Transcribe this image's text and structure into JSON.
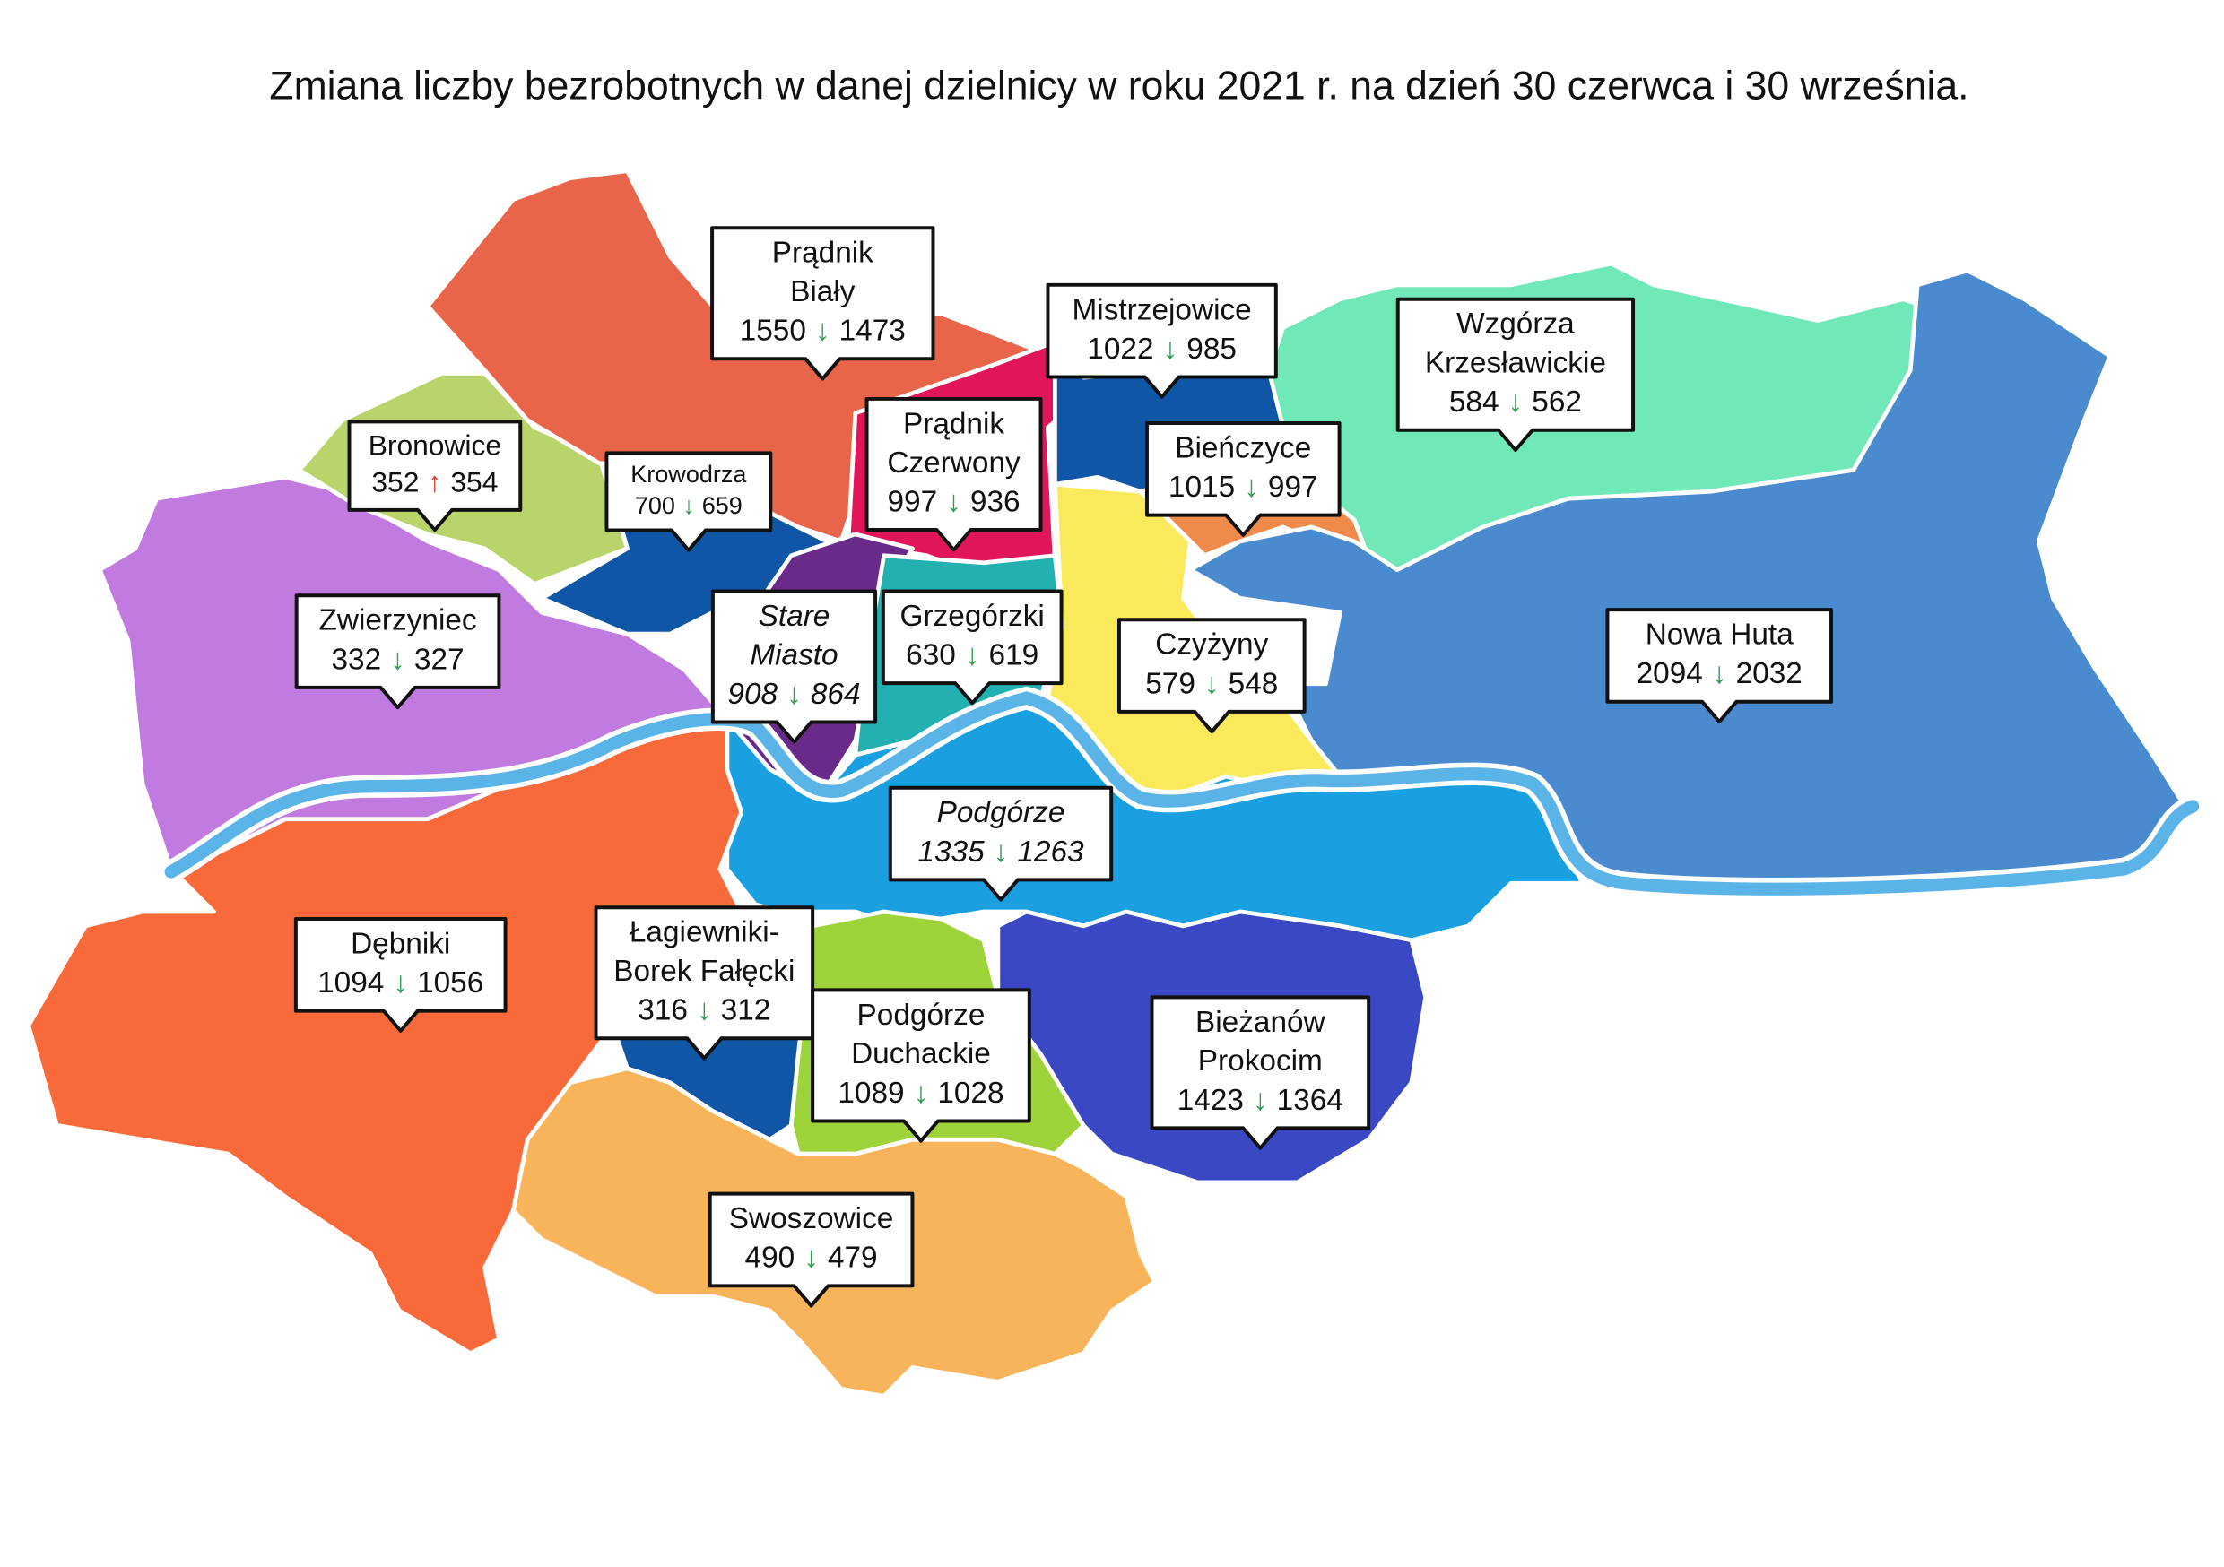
{
  "title": "Zmiana liczby bezrobotnych w danej dzielnicy w roku 2021 r. na dzień 30 czerwca i 30 września.",
  "districts": [
    {
      "name": [
        "Prądnik",
        "Biały"
      ],
      "june": 1550,
      "arrow": "↓",
      "september": 1473,
      "arrow_color": "#2e9e52"
    },
    {
      "name": [
        "Mistrzejowice"
      ],
      "june": 1022,
      "arrow": "↓",
      "september": 985,
      "arrow_color": "#2e9e52"
    },
    {
      "name": [
        "Wzgórza",
        "Krzesławickie"
      ],
      "june": 584,
      "arrow": "↓",
      "september": 562,
      "arrow_color": "#2e9e52"
    },
    {
      "name": [
        "Bronowice"
      ],
      "june": 352,
      "arrow": "↑",
      "september": 354,
      "arrow_color": "#e03a2a"
    },
    {
      "name": [
        "Krowodrza"
      ],
      "june": 700,
      "arrow": "↓",
      "september": 659,
      "arrow_color": "#2e9e52"
    },
    {
      "name": [
        "Prądnik",
        "Czerwony"
      ],
      "june": 997,
      "arrow": "↓",
      "september": 936,
      "arrow_color": "#2e9e52"
    },
    {
      "name": [
        "Bieńczyce"
      ],
      "june": 1015,
      "arrow": "↓",
      "september": 997,
      "arrow_color": "#2e9e52"
    },
    {
      "name": [
        "Zwierzyniec"
      ],
      "june": 332,
      "arrow": "↓",
      "september": 327,
      "arrow_color": "#2e9e52"
    },
    {
      "name": [
        "Stare",
        "Miasto"
      ],
      "june": 908,
      "arrow": "↓",
      "september": 864,
      "arrow_color": "#2e9e52"
    },
    {
      "name": [
        "Grzegórzki"
      ],
      "june": 630,
      "arrow": "↓",
      "september": 619,
      "arrow_color": "#2e9e52"
    },
    {
      "name": [
        "Czyżyny"
      ],
      "june": 579,
      "arrow": "↓",
      "september": 548,
      "arrow_color": "#2e9e52"
    },
    {
      "name": [
        "Nowa Huta"
      ],
      "june": 2094,
      "arrow": "↓",
      "september": 2032,
      "arrow_color": "#2e9e52"
    },
    {
      "name": [
        "Podgórze"
      ],
      "june": 1335,
      "arrow": "↓",
      "september": 1263,
      "arrow_color": "#2e9e52"
    },
    {
      "name": [
        "Dębniki"
      ],
      "june": 1094,
      "arrow": "↓",
      "september": 1056,
      "arrow_color": "#2e9e52"
    },
    {
      "name": [
        "Łagiewniki-",
        "Borek Fałęcki"
      ],
      "june": 316,
      "arrow": "↓",
      "september": 312,
      "arrow_color": "#2e9e52"
    },
    {
      "name": [
        "Podgórze",
        "Duchackie"
      ],
      "june": 1089,
      "arrow": "↓",
      "september": 1028,
      "arrow_color": "#2e9e52"
    },
    {
      "name": [
        "Bieżanów",
        "Prokocim"
      ],
      "june": 1423,
      "arrow": "↓",
      "september": 1364,
      "arrow_color": "#2e9e52"
    },
    {
      "name": [
        "Swoszowice"
      ],
      "june": 490,
      "arrow": "↓",
      "september": 479,
      "arrow_color": "#2e9e52"
    }
  ]
}
